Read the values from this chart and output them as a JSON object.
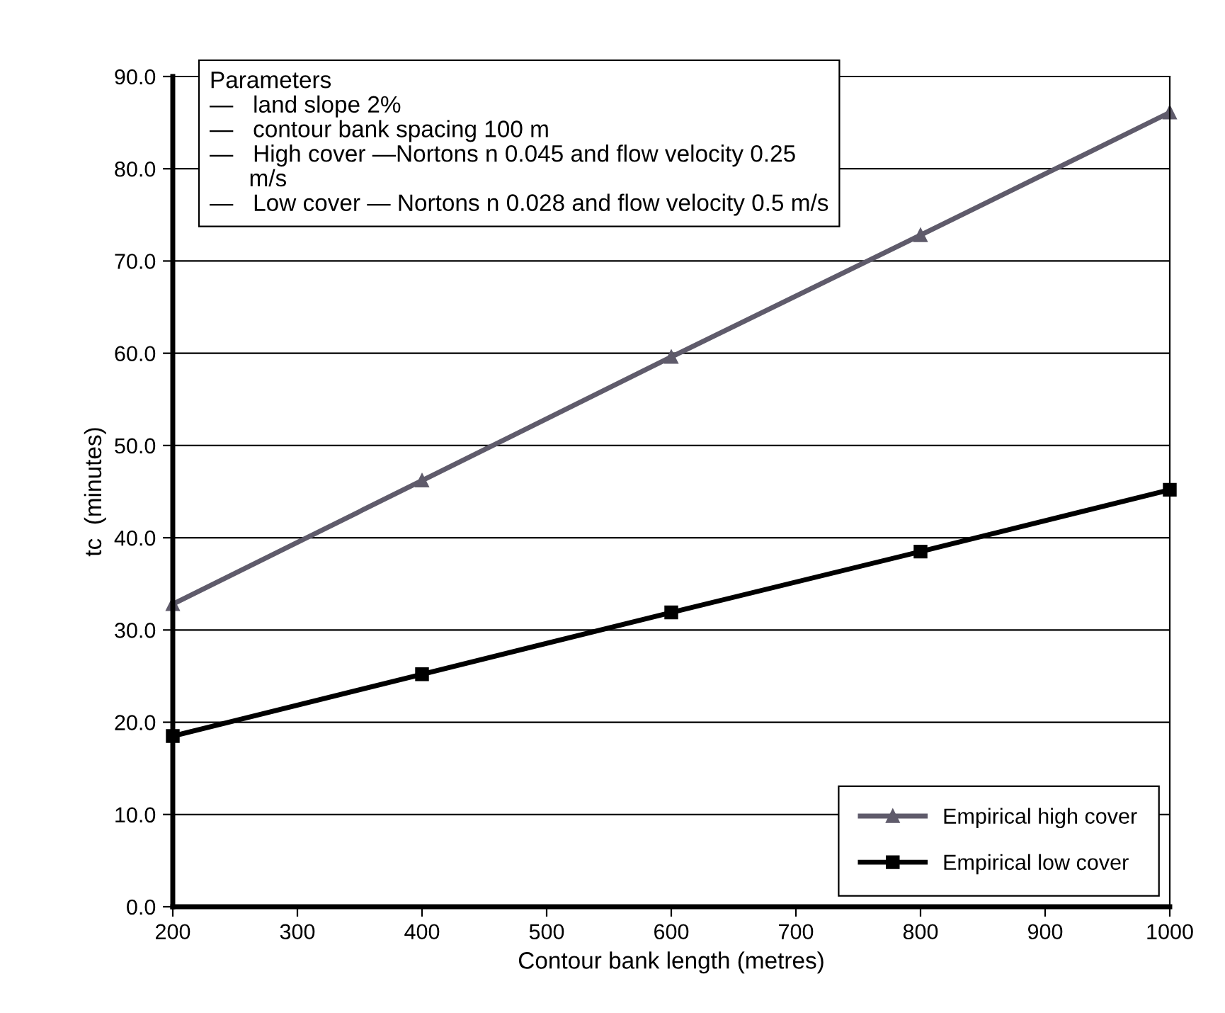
{
  "chart_data": {
    "type": "line",
    "xlabel": "Contour bank length (metres)",
    "ylabel": "tc  (minutes)",
    "x": [
      200,
      400,
      600,
      800,
      1000
    ],
    "series": [
      {
        "name": "Empirical high cover",
        "color": "#5f5b6b",
        "marker": "triangle",
        "values": [
          32.8,
          46.2,
          59.6,
          72.8,
          86.1
        ]
      },
      {
        "name": "Empirical low cover",
        "color": "#000000",
        "marker": "square",
        "values": [
          18.5,
          25.2,
          31.9,
          38.5,
          45.2
        ]
      }
    ],
    "xlim": [
      200,
      1000
    ],
    "xticks": [
      200,
      300,
      400,
      500,
      600,
      700,
      800,
      900,
      1000
    ],
    "ylim": [
      0,
      90
    ],
    "yticks": [
      {
        "value": 0,
        "label": "0.0"
      },
      {
        "value": 10,
        "label": "10.0"
      },
      {
        "value": 20,
        "label": "20.0"
      },
      {
        "value": 30,
        "label": "30.0"
      },
      {
        "value": 40,
        "label": "40.0"
      },
      {
        "value": 50,
        "label": "50.0"
      },
      {
        "value": 60,
        "label": "60.0"
      },
      {
        "value": 70,
        "label": "70.0"
      },
      {
        "value": 80,
        "label": "80.0"
      },
      {
        "value": 90,
        "label": "90.0"
      }
    ],
    "grid": "y",
    "legend": "bottom right",
    "line_style": "solid",
    "annotations": [
      "Parameters\n—   land slope 2%\n—   contour bank spacing 100 m\n—   High cover —Nortons n 0.045 and flow velocity 0.25\n      m/s\n—   Low cover — Nortons n 0.028 and flow velocity 0.5 m/s"
    ]
  }
}
